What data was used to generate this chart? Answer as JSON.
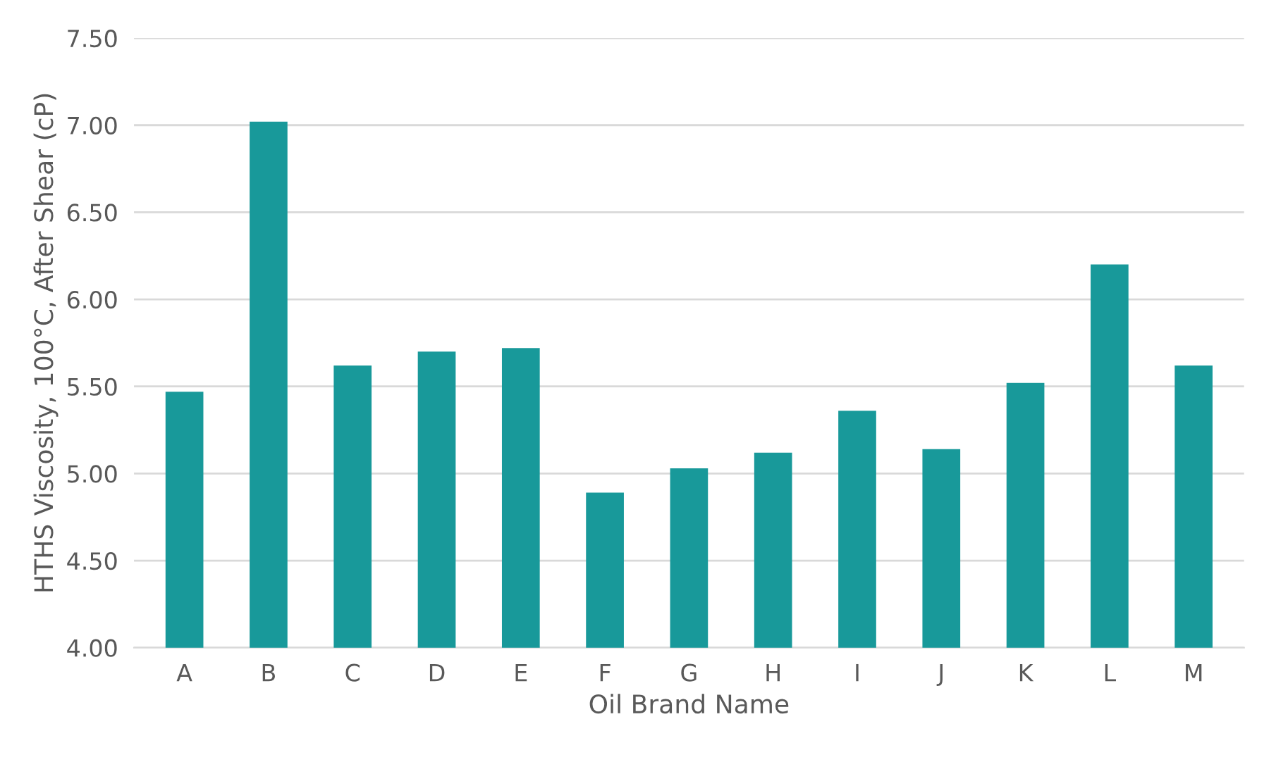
{
  "chart_data": {
    "type": "bar",
    "xlabel": "Oil Brand Name",
    "ylabel": "HTHS Viscosity, 100°C, After Shear (cP)",
    "categories": [
      "A",
      "B",
      "C",
      "D",
      "E",
      "F",
      "G",
      "H",
      "I",
      "J",
      "K",
      "L",
      "M"
    ],
    "values": [
      5.47,
      7.02,
      5.62,
      5.7,
      5.72,
      4.89,
      5.03,
      5.12,
      5.36,
      5.14,
      5.52,
      6.2,
      5.62
    ],
    "color": "#18999a",
    "ylim": [
      4.0,
      7.5
    ],
    "yticks": [
      {
        "value": 4.0,
        "label": "4.00"
      },
      {
        "value": 4.5,
        "label": "4.50"
      },
      {
        "value": 5.0,
        "label": "5.00"
      },
      {
        "value": 5.5,
        "label": "5.50"
      },
      {
        "value": 6.0,
        "label": "6.00"
      },
      {
        "value": 6.5,
        "label": "6.50"
      },
      {
        "value": 7.0,
        "label": "7.00"
      },
      {
        "value": 7.5,
        "label": "7.50"
      }
    ],
    "grid": "y",
    "legend": false
  }
}
